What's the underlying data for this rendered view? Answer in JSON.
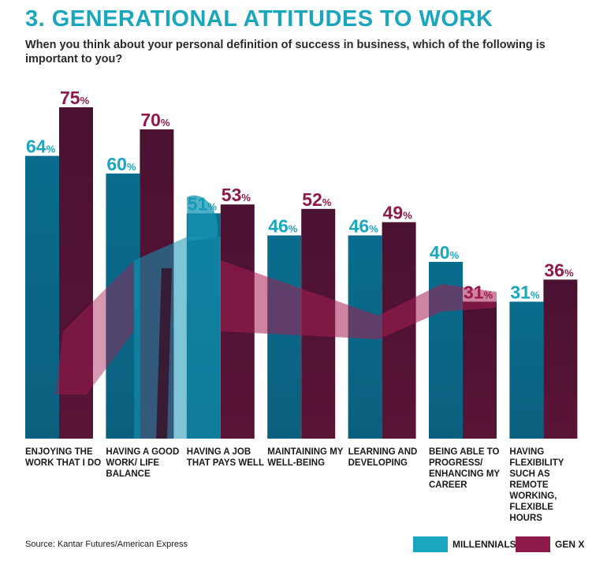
{
  "header": {
    "title": "3. GENERATIONAL ATTITUDES TO WORK",
    "subtitle": "When you think about your personal definition of success in business, which of the following is important to you?"
  },
  "colors": {
    "millennials": "#0a6d8d",
    "millennials_label": "#1aa6bd",
    "genx": "#4a1131",
    "genx_label": "#8e1a4b",
    "photo_blue": "#1595b4",
    "photo_red": "#a51d52"
  },
  "chart_data": {
    "type": "bar",
    "categories": [
      "ENJOYING THE WORK THAT I DO",
      "HAVING A GOOD WORK/ LIFE BALANCE",
      "HAVING A JOB THAT PAYS WELL",
      "MAINTAINING MY WELL-BEING",
      "LEARNING AND DEVELOPING",
      "BEING ABLE TO PROGRESS/ ENHANCING MY CAREER",
      "HAVING FLEXIBILITY SUCH AS REMOTE WORKING, FLEXIBLE HOURS"
    ],
    "series": [
      {
        "name": "MILLENNIALS",
        "values": [
          64,
          60,
          51,
          46,
          46,
          40,
          31
        ]
      },
      {
        "name": "GEN X",
        "values": [
          75,
          70,
          53,
          52,
          49,
          31,
          36
        ]
      }
    ],
    "value_suffix": "%",
    "ylim": [
      0,
      100
    ],
    "legend_position": "bottom-right",
    "grid": false
  },
  "footer": {
    "source": "Source: Kantar Futures/American Express"
  },
  "legend": [
    {
      "label": "MILLENNIALS",
      "color": "#1aa6bd"
    },
    {
      "label": "GEN X",
      "color": "#8e1a4b"
    }
  ]
}
